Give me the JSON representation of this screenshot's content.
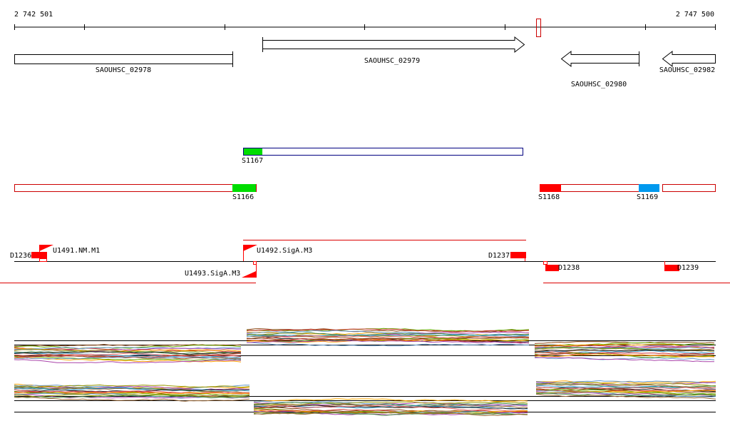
{
  "ruler": {
    "start_label": "2 742 501",
    "end_label": "2 747 500"
  },
  "genes": [
    {
      "id": "SAOUHSC_02978",
      "strand": "none"
    },
    {
      "id": "SAOUHSC_02979",
      "strand": "+"
    },
    {
      "id": "SAOUHSC_02980",
      "strand": "-"
    },
    {
      "id": "SAOUHSC_02982",
      "strand": "-"
    }
  ],
  "segments": {
    "forward": [
      {
        "id": "S1167",
        "color": "#00dd00"
      }
    ],
    "reverse": [
      {
        "id": "S1166",
        "color": "#00dd00"
      },
      {
        "id": "S1168",
        "color": "#ff0000"
      },
      {
        "id": "S1169",
        "color": "#0099ee"
      }
    ]
  },
  "features": {
    "upshifts": [
      "U1491.NM.M1",
      "U1492.SigA.M3",
      "U1493.SigA.M3"
    ],
    "downshifts": [
      "D1236",
      "D1237",
      "D1238",
      "D1239"
    ]
  },
  "colors": {
    "gene_outline": "#000000",
    "forward_segment_outline": "#000080",
    "reverse_segment_outline": "#cc0000",
    "feature_red": "#ff0000",
    "track_line": "#000000"
  },
  "expression_profile_colors": [
    "#8b4513",
    "#66aa00",
    "#cc3333",
    "#ffa500",
    "#6699cc",
    "#aa44aa",
    "#999900",
    "#448844",
    "#996633",
    "#3399cc",
    "#222222",
    "#e06060"
  ]
}
